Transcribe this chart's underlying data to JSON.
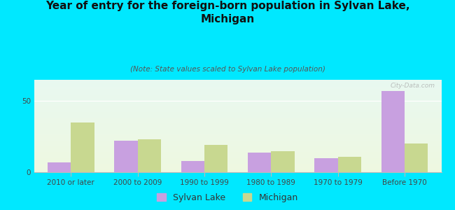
{
  "title": "Year of entry for the foreign-born population in Sylvan Lake,\nMichigan",
  "subtitle": "(Note: State values scaled to Sylvan Lake population)",
  "categories": [
    "2010 or later",
    "2000 to 2009",
    "1990 to 1999",
    "1980 to 1989",
    "1970 to 1979",
    "Before 1970"
  ],
  "sylvan_lake": [
    7,
    22,
    8,
    14,
    10,
    57
  ],
  "michigan": [
    35,
    23,
    19,
    15,
    11,
    20
  ],
  "sylvan_lake_color": "#c8a0e0",
  "michigan_color": "#c8d890",
  "grad_top": "#e8f8f0",
  "grad_bottom": "#eef8e0",
  "outer_bg": "#00e8ff",
  "bar_width": 0.35,
  "ylim": [
    0,
    65
  ],
  "yticks": [
    0,
    50
  ],
  "legend_sylvan": "Sylvan Lake",
  "legend_michigan": "Michigan",
  "watermark": "City-Data.com",
  "title_fontsize": 11,
  "subtitle_fontsize": 7.5,
  "tick_fontsize": 7.5,
  "legend_fontsize": 9
}
